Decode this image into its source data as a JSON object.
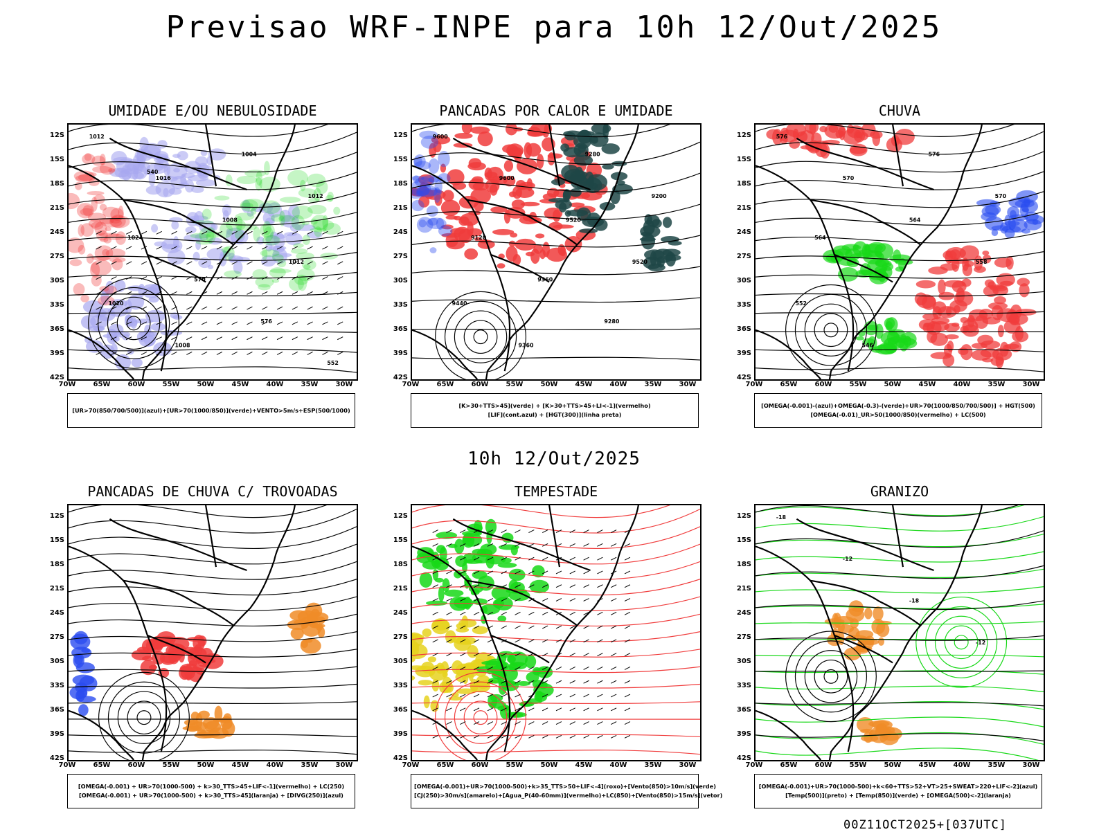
{
  "title": "Previsao WRF-INPE  para 10h 12/Out/2025",
  "mid_title": "10h 12/Out/2025",
  "footer": "00Z11OCT2025+[037UTC]",
  "lat_labels": [
    "12S",
    "15S",
    "18S",
    "21S",
    "24S",
    "27S",
    "30S",
    "33S",
    "36S",
    "39S",
    "42S"
  ],
  "lon_labels": [
    "70W",
    "65W",
    "60W",
    "55W",
    "50W",
    "45W",
    "40W",
    "35W",
    "30W"
  ],
  "panels": [
    {
      "title": "UMIDADE E/OU NEBULOSIDADE",
      "legend": [
        "[UR>70(850/700/500)](azul)+[UR>70(1000/850)](verde)+VENTO>5m/s+ESP(500/1000)"
      ],
      "contour_labels": [
        "1012",
        "1016",
        "1008",
        "1012",
        "1020",
        "1008",
        "1004",
        "1012",
        "1024",
        "570",
        "576",
        "552",
        "540"
      ]
    },
    {
      "title": "PANCADAS POR CALOR E UMIDADE",
      "legend": [
        "[K>30+TTS>45](verde) + [K>30+TTS>45+LI<-1](vermelho)",
        "[LIF](cont.azul) + [HGT(300)](linha preta)"
      ],
      "contour_labels": [
        "9600",
        "9600",
        "9520",
        "9520",
        "9440",
        "9360",
        "9280",
        "9200",
        "9120",
        "9360",
        "9280"
      ]
    },
    {
      "title": "CHUVA",
      "legend": [
        "[OMEGA(-0.001)-(azul)+OMEGA(-0.3)-(verde)+UR>70(1000/850/700/500)] + HGT(500)",
        "[OMEGA(-0.01)_UR>50(1000/850)(vermelho) + LC(500)"
      ],
      "contour_labels": [
        "576",
        "570",
        "564",
        "558",
        "552",
        "546",
        "576",
        "570",
        "564"
      ]
    },
    {
      "title": "PANCADAS DE CHUVA C/ TROVOADAS",
      "legend": [
        "[OMEGA(-0.001) + UR>70(1000-500) + k>30_TTS>45+LIF<-1](vermelho) + LC(250)",
        "[OMEGA(-0.001) + UR>70(1000-500) + k>30_TTS>45](laranja) + [DIVG(250)](azul)"
      ],
      "contour_labels": []
    },
    {
      "title": "TEMPESTADE",
      "legend": [
        "[OMEGA(-0.001)+UR>70(1000-500)+k>35_TTS>50+LIF<-4](roxo)+[Vento(850)>10m/s](verde)",
        "[CJ(250)>30m/s](amarelo)+[Agua_P(40-60mm)](vermelho)+LC(850)+[Vento(850)>15m/s](vetor)"
      ],
      "contour_labels": []
    },
    {
      "title": "GRANIZO",
      "legend": [
        "[OMEGA(-0.001)+UR>70(1000-500)+k<60+TTS>52+VT>25+SWEAT>220+LIF<-2](azul)",
        "[Temp(500)](preto) + [Temp(850)](verde) + [OMEGA(500)<-2](laranja)"
      ],
      "contour_labels": [
        "-18",
        "-12",
        "-18",
        "-12"
      ]
    }
  ],
  "colors": {
    "red": "#f03c3c",
    "green": "#18d818",
    "blue": "#2a4cf0",
    "lavender": "#a8a8f0",
    "orange": "#f08c28",
    "yellow": "#e6d21e",
    "darkteal": "#1e4646",
    "purple": "#c828c8",
    "black": "#000000"
  }
}
